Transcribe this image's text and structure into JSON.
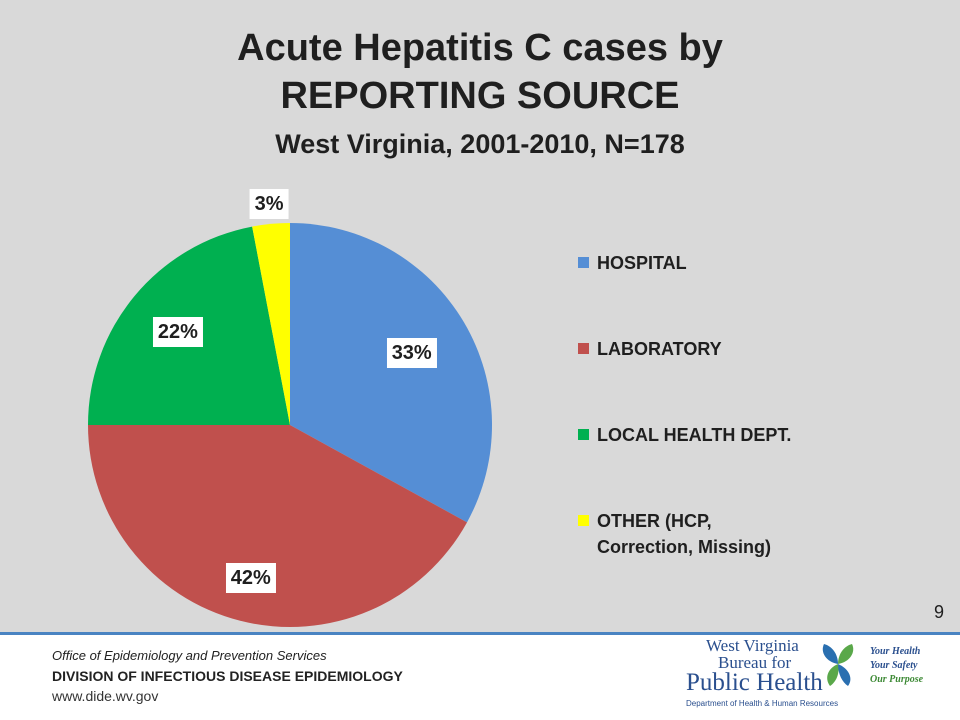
{
  "title": {
    "line1": "Acute Hepatitis C cases by",
    "line2": "REPORTING SOURCE",
    "subtitle": "West Virginia, 2001-2010, N=178"
  },
  "chart_data": {
    "type": "pie",
    "title": "Acute Hepatitis C cases by REPORTING SOURCE",
    "subtitle": "West Virginia, 2001-2010, N=178",
    "legend_position": "right",
    "slices": [
      {
        "name": "HOSPITAL",
        "value": 33,
        "label": "33%",
        "color": "#558ed5"
      },
      {
        "name": "LABORATORY",
        "value": 42,
        "label": "42%",
        "color": "#c0504d"
      },
      {
        "name": "LOCAL HEALTH DEPT.",
        "value": 22,
        "label": "22%",
        "color": "#00b050"
      },
      {
        "name": "OTHER (HCP,\nCorrection, Missing)",
        "value": 3,
        "label": "3%",
        "color": "#ffff00"
      }
    ]
  },
  "page_number": "9",
  "footer": {
    "office": "Office of Epidemiology and Prevention Services",
    "division": "DIVISION OF INFECTIOUS DISEASE EPIDEMIOLOGY",
    "url": "www.dide.wv.gov"
  },
  "logo": {
    "line1": "West Virginia",
    "line2": "Bureau for",
    "line3": "Public Health",
    "line4": "Department of Health & Human Resources",
    "tag1": "Your Health",
    "tag2": "Your Safety",
    "tag3": "Our Purpose"
  }
}
